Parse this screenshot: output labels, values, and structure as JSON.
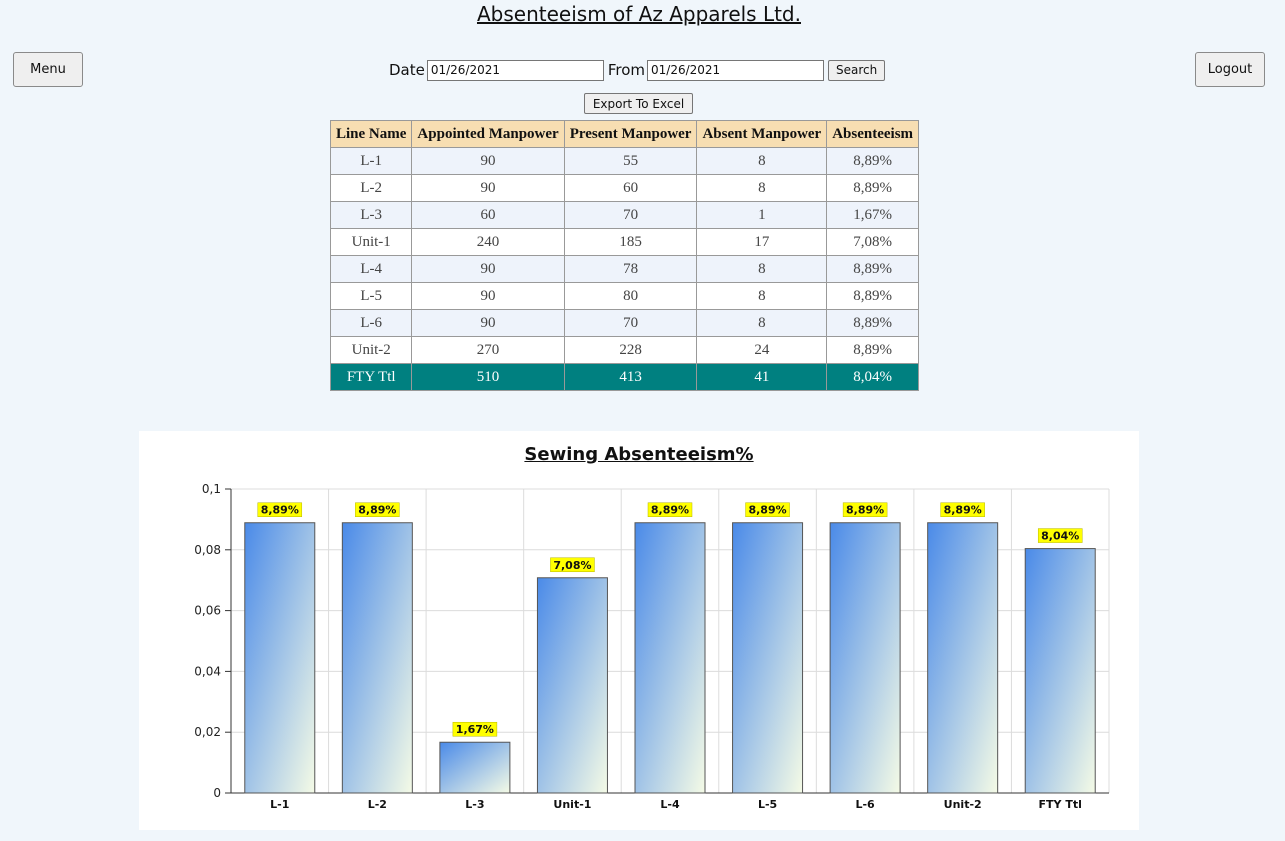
{
  "header": {
    "title": "Absenteeism of Az Apparels Ltd."
  },
  "nav": {
    "menu_label": "Menu",
    "logout_label": "Logout"
  },
  "filters": {
    "date_label": "Date",
    "date_value": "01/26/2021",
    "from_label": "From",
    "from_value": "01/26/2021",
    "search_label": "Search",
    "export_label": "Export To Excel"
  },
  "table": {
    "columns": [
      "Line Name",
      "Appointed Manpower",
      "Present Manpower",
      "Absent Manpower",
      "Absenteeism"
    ],
    "rows": [
      [
        "L-1",
        "90",
        "55",
        "8",
        "8,89%"
      ],
      [
        "L-2",
        "90",
        "60",
        "8",
        "8,89%"
      ],
      [
        "L-3",
        "60",
        "70",
        "1",
        "1,67%"
      ],
      [
        "Unit-1",
        "240",
        "185",
        "17",
        "7,08%"
      ],
      [
        "L-4",
        "90",
        "78",
        "8",
        "8,89%"
      ],
      [
        "L-5",
        "90",
        "80",
        "8",
        "8,89%"
      ],
      [
        "L-6",
        "90",
        "70",
        "8",
        "8,89%"
      ],
      [
        "Unit-2",
        "270",
        "228",
        "24",
        "8,89%"
      ]
    ],
    "total": [
      "FTY Ttl",
      "510",
      "413",
      "41",
      "8,04%"
    ]
  },
  "chart_data": {
    "type": "bar",
    "title": "Sewing Absenteeism%",
    "categories": [
      "L-1",
      "L-2",
      "L-3",
      "Unit-1",
      "L-4",
      "L-5",
      "L-6",
      "Unit-2",
      "FTY Ttl"
    ],
    "values": [
      0.0889,
      0.0889,
      0.0167,
      0.0708,
      0.0889,
      0.0889,
      0.0889,
      0.0889,
      0.0804
    ],
    "data_labels": [
      "8,89%",
      "8,89%",
      "1,67%",
      "7,08%",
      "8,89%",
      "8,89%",
      "8,89%",
      "8,89%",
      "8,04%"
    ],
    "ylim": [
      0,
      0.1
    ],
    "yticks": [
      0,
      0.02,
      0.04,
      0.06,
      0.08,
      0.1
    ],
    "ytick_labels": [
      "0",
      "0,02",
      "0,04",
      "0,06",
      "0,08",
      "0,1"
    ],
    "xlabel": "",
    "ylabel": "",
    "grid": true,
    "bar_gradient": [
      "#4a8ae8",
      "#f5fbe6"
    ],
    "label_bg": "#ffff00"
  }
}
